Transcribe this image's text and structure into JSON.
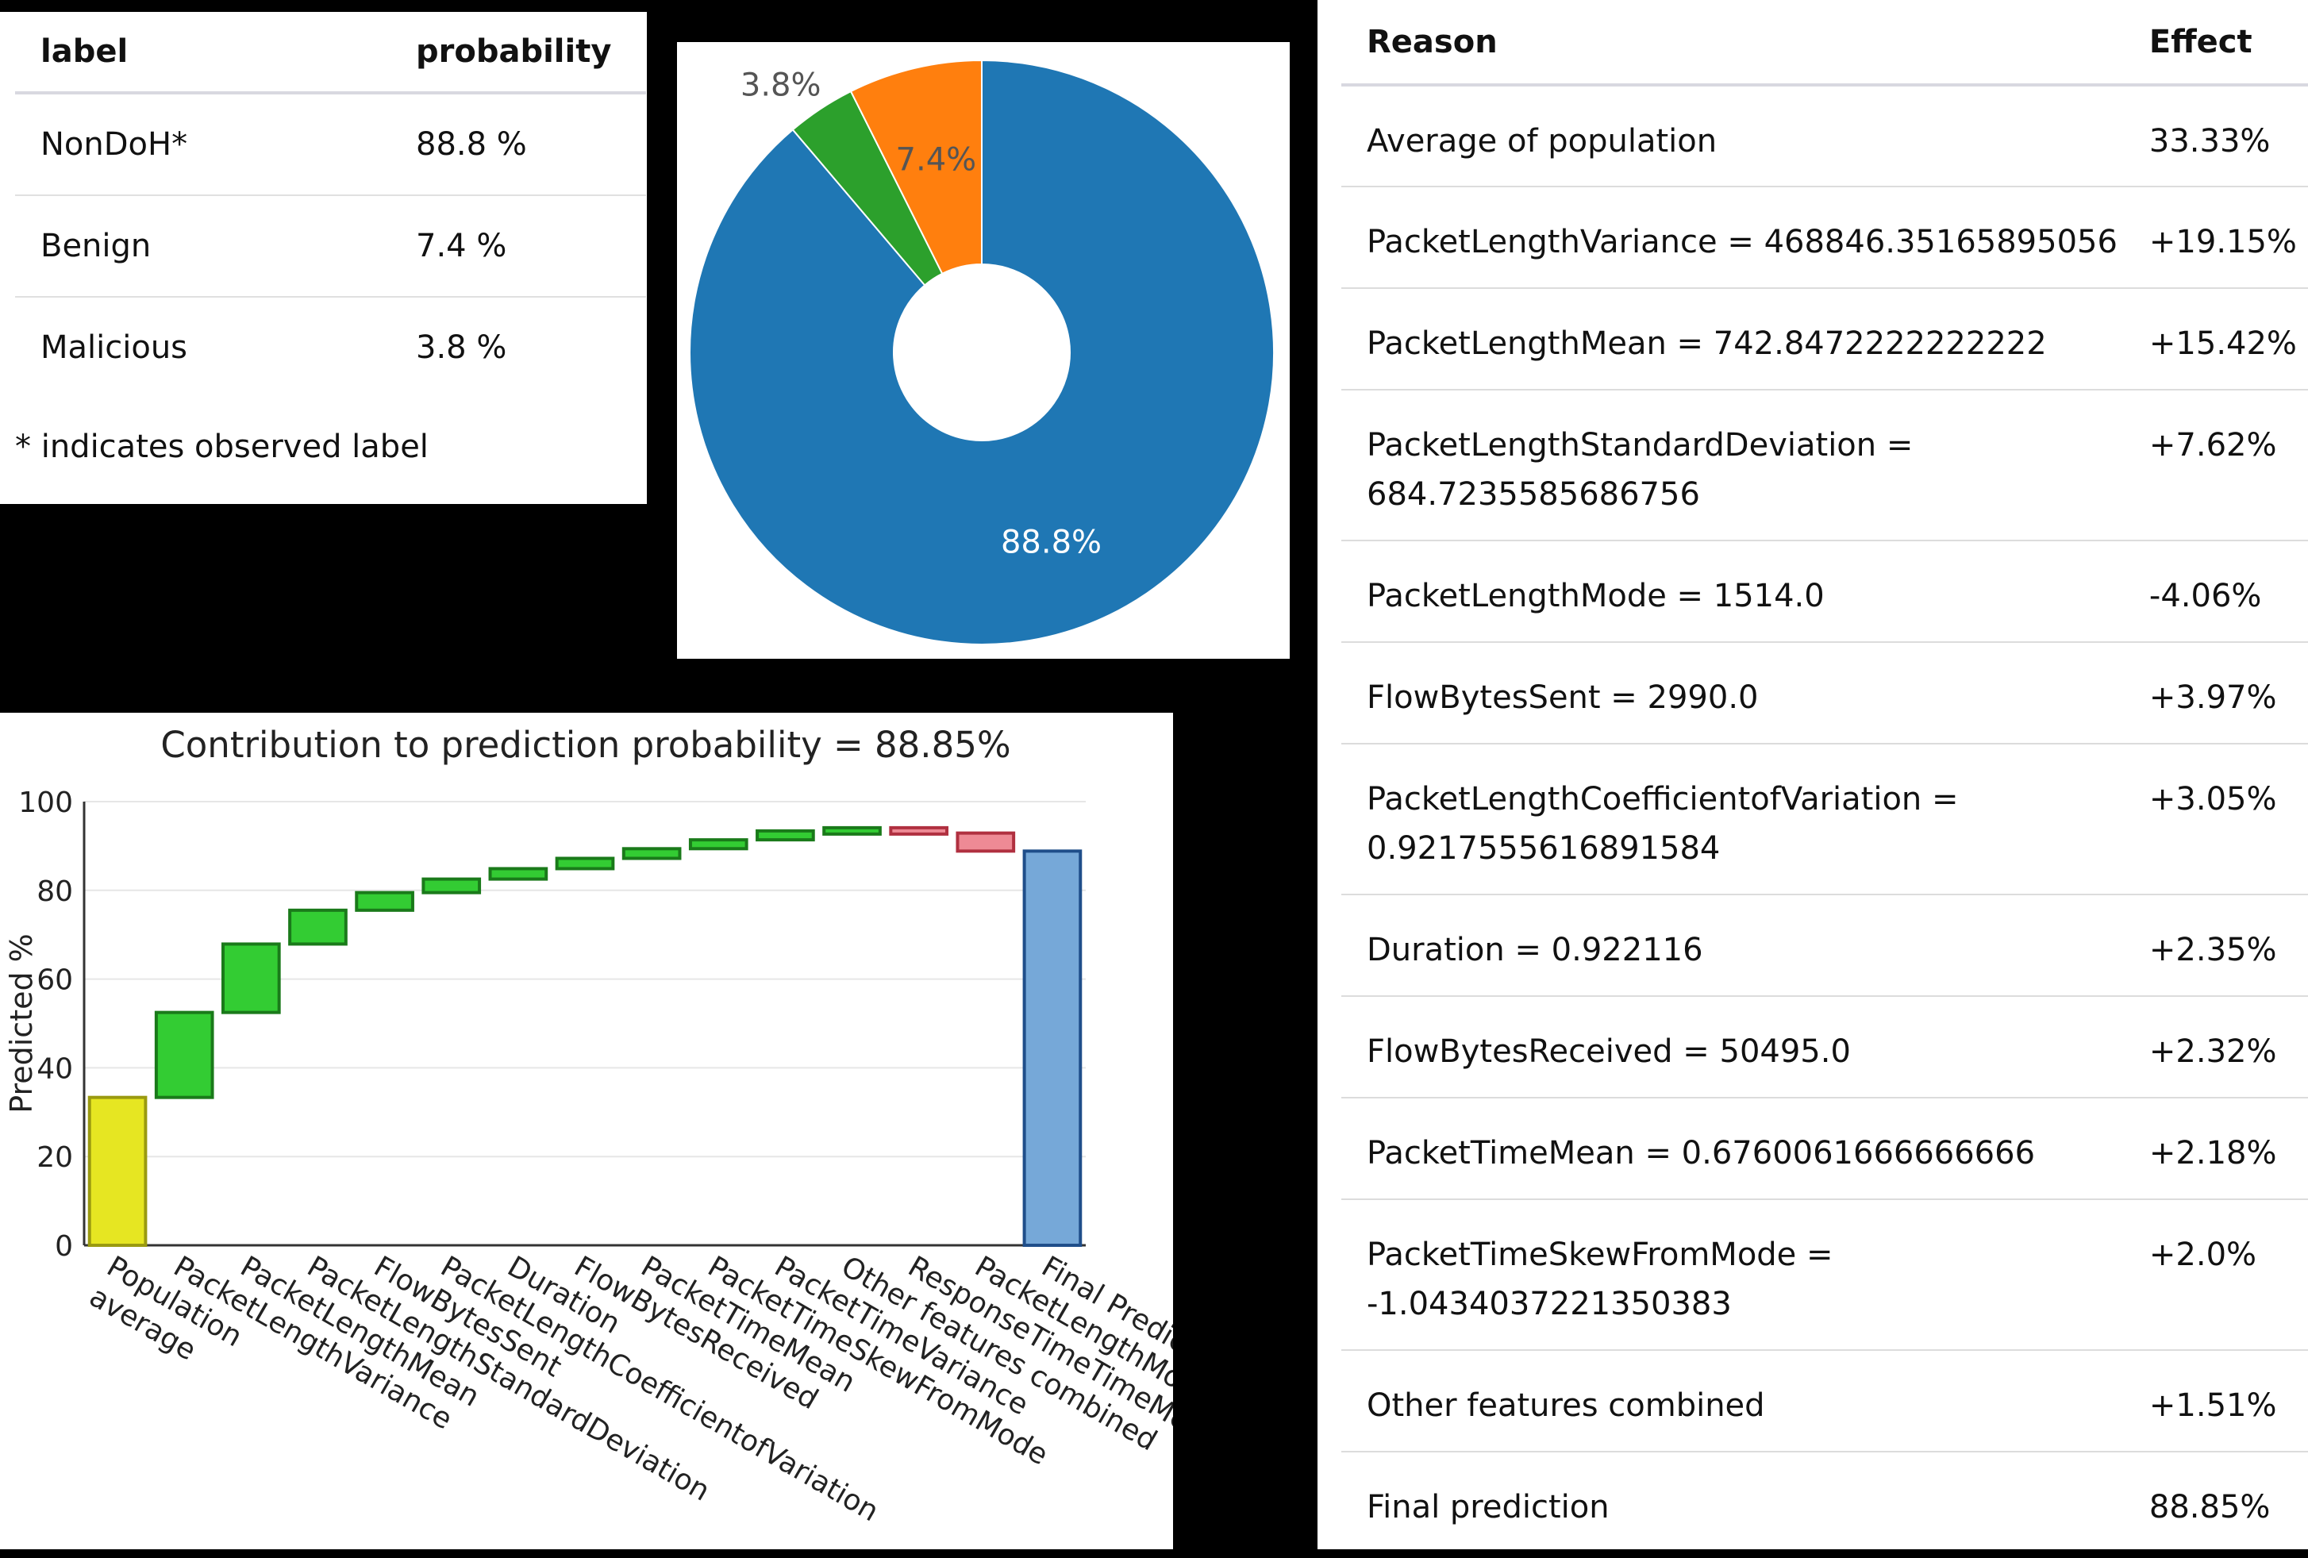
{
  "probability_table": {
    "headers": {
      "label": "label",
      "probability": "probability"
    },
    "rows": [
      {
        "label": "NonDoH*",
        "probability": "88.8 %"
      },
      {
        "label": "Benign",
        "probability": "7.4 %"
      },
      {
        "label": "Malicious",
        "probability": "3.8 %"
      }
    ],
    "note": "* indicates observed label"
  },
  "reasons_table": {
    "headers": {
      "reason": "Reason",
      "effect": "Effect"
    },
    "rows": [
      {
        "reason": "Average of population",
        "effect": "33.33%"
      },
      {
        "reason": "PacketLengthVariance = 468846.35165895056",
        "effect": "+19.15%"
      },
      {
        "reason": "PacketLengthMean = 742.8472222222222",
        "effect": "+15.42%"
      },
      {
        "reason": "PacketLengthStandardDeviation =",
        "reason_2": "684.7235585686756",
        "effect": "+7.62%"
      },
      {
        "reason": "PacketLengthMode = 1514.0",
        "effect": "-4.06%"
      },
      {
        "reason": "FlowBytesSent = 2990.0",
        "effect": "+3.97%"
      },
      {
        "reason": "PacketLengthCoefficientofVariation =",
        "reason_2": "0.9217555616891584",
        "effect": "+3.05%"
      },
      {
        "reason": "Duration = 0.922116",
        "effect": "+2.35%"
      },
      {
        "reason": "FlowBytesReceived = 50495.0",
        "effect": "+2.32%"
      },
      {
        "reason": "PacketTimeMean = 0.6760061666666666",
        "effect": "+2.18%"
      },
      {
        "reason": "PacketTimeSkewFromMode =",
        "reason_2": "-1.0434037221350383",
        "effect": "+2.0%"
      },
      {
        "reason": "Other features combined",
        "effect": "+1.51%"
      },
      {
        "reason": "Final prediction",
        "effect": "88.85%"
      }
    ]
  },
  "chart_data": [
    {
      "type": "pie",
      "donut": true,
      "slices": [
        {
          "label": "88.8%",
          "value": 88.8,
          "color": "#1f77b4"
        },
        {
          "label": "3.8%",
          "value": 3.8,
          "color": "#2ca02c"
        },
        {
          "label": "7.4%",
          "value": 7.4,
          "color": "#ff7f0e"
        }
      ]
    },
    {
      "type": "bar",
      "subtype": "waterfall",
      "title": "Contribution to prediction probability = 88.85%",
      "ylabel": "Predicted %",
      "ylim": [
        0,
        100
      ],
      "yticks": [
        0,
        20,
        40,
        60,
        80,
        100
      ],
      "grid": true,
      "categories": [
        [
          "Population",
          "average"
        ],
        [
          "PacketLengthVariance"
        ],
        [
          "PacketLengthMean"
        ],
        [
          "PacketLengthStandardDeviation"
        ],
        [
          "FlowBytesSent"
        ],
        [
          "PacketLengthCoefficientofVariation"
        ],
        [
          "Duration"
        ],
        [
          "FlowBytesReceived"
        ],
        [
          "PacketTimeMean"
        ],
        [
          "PacketTimeSkewFromMode"
        ],
        [
          "PacketTimeVariance"
        ],
        [
          "Other features combined"
        ],
        [
          "ResponseTimeTimeMean"
        ],
        [
          "PacketLengthMode"
        ],
        [
          "Final Prediction"
        ]
      ],
      "bars": [
        {
          "start": 0,
          "end": 33.33,
          "kind": "base"
        },
        {
          "start": 33.33,
          "end": 52.48,
          "kind": "increase"
        },
        {
          "start": 52.48,
          "end": 67.9,
          "kind": "increase"
        },
        {
          "start": 67.9,
          "end": 75.52,
          "kind": "increase"
        },
        {
          "start": 75.52,
          "end": 79.49,
          "kind": "increase"
        },
        {
          "start": 79.49,
          "end": 82.54,
          "kind": "increase"
        },
        {
          "start": 82.54,
          "end": 84.89,
          "kind": "increase"
        },
        {
          "start": 84.89,
          "end": 87.21,
          "kind": "increase"
        },
        {
          "start": 87.21,
          "end": 89.39,
          "kind": "increase"
        },
        {
          "start": 89.39,
          "end": 91.39,
          "kind": "increase"
        },
        {
          "start": 91.39,
          "end": 93.4,
          "kind": "increase"
        },
        {
          "start": 93.4,
          "end": 93.4,
          "kind": "increase"
        },
        {
          "start": 93.4,
          "end": 92.91,
          "kind": "decrease"
        },
        {
          "start": 92.91,
          "end": 88.85,
          "kind": "decrease"
        },
        {
          "start": 0,
          "end": 88.85,
          "kind": "total"
        }
      ],
      "colors": {
        "base": {
          "fill": "#e6e622",
          "stroke": "#9a9a10"
        },
        "increase": {
          "fill": "#33cc33",
          "stroke": "#1a7a1a"
        },
        "decrease": {
          "fill": "#ee8a95",
          "stroke": "#b03040"
        },
        "total": {
          "fill": "#76a8d8",
          "stroke": "#1f4e8a"
        }
      }
    }
  ]
}
